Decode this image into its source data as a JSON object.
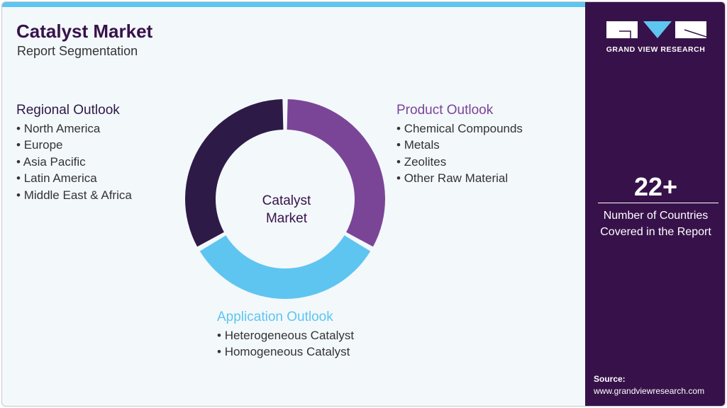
{
  "header": {
    "title": "Catalyst Market",
    "subtitle": "Report Segmentation"
  },
  "center_label": "Catalyst Market",
  "segments": [
    {
      "title": "Product Outlook",
      "color": "#7b4597",
      "items": [
        "Chemical Compounds",
        "Metals",
        "Zeolites",
        "Other Raw Material"
      ]
    },
    {
      "title": "Application Outlook",
      "color": "#5ec5f0",
      "items": [
        "Heterogeneous Catalyst",
        "Homogeneous Catalyst"
      ]
    },
    {
      "title": "Regional Outlook",
      "color": "#2e1a47",
      "items": [
        "North America",
        "Europe",
        "Asia Pacific",
        "Latin America",
        "Middle East & Africa"
      ]
    }
  ],
  "sidebar": {
    "logo_text": "GRAND VIEW RESEARCH",
    "stat": "22+",
    "stat_label": "Number of Countries Covered in the Report",
    "source_label": "Source:",
    "source_url": "www.grandviewresearch.com"
  },
  "colors": {
    "accent": "#5ec5f0",
    "brand": "#37124a",
    "panel_bg": "#f3f8fb"
  }
}
